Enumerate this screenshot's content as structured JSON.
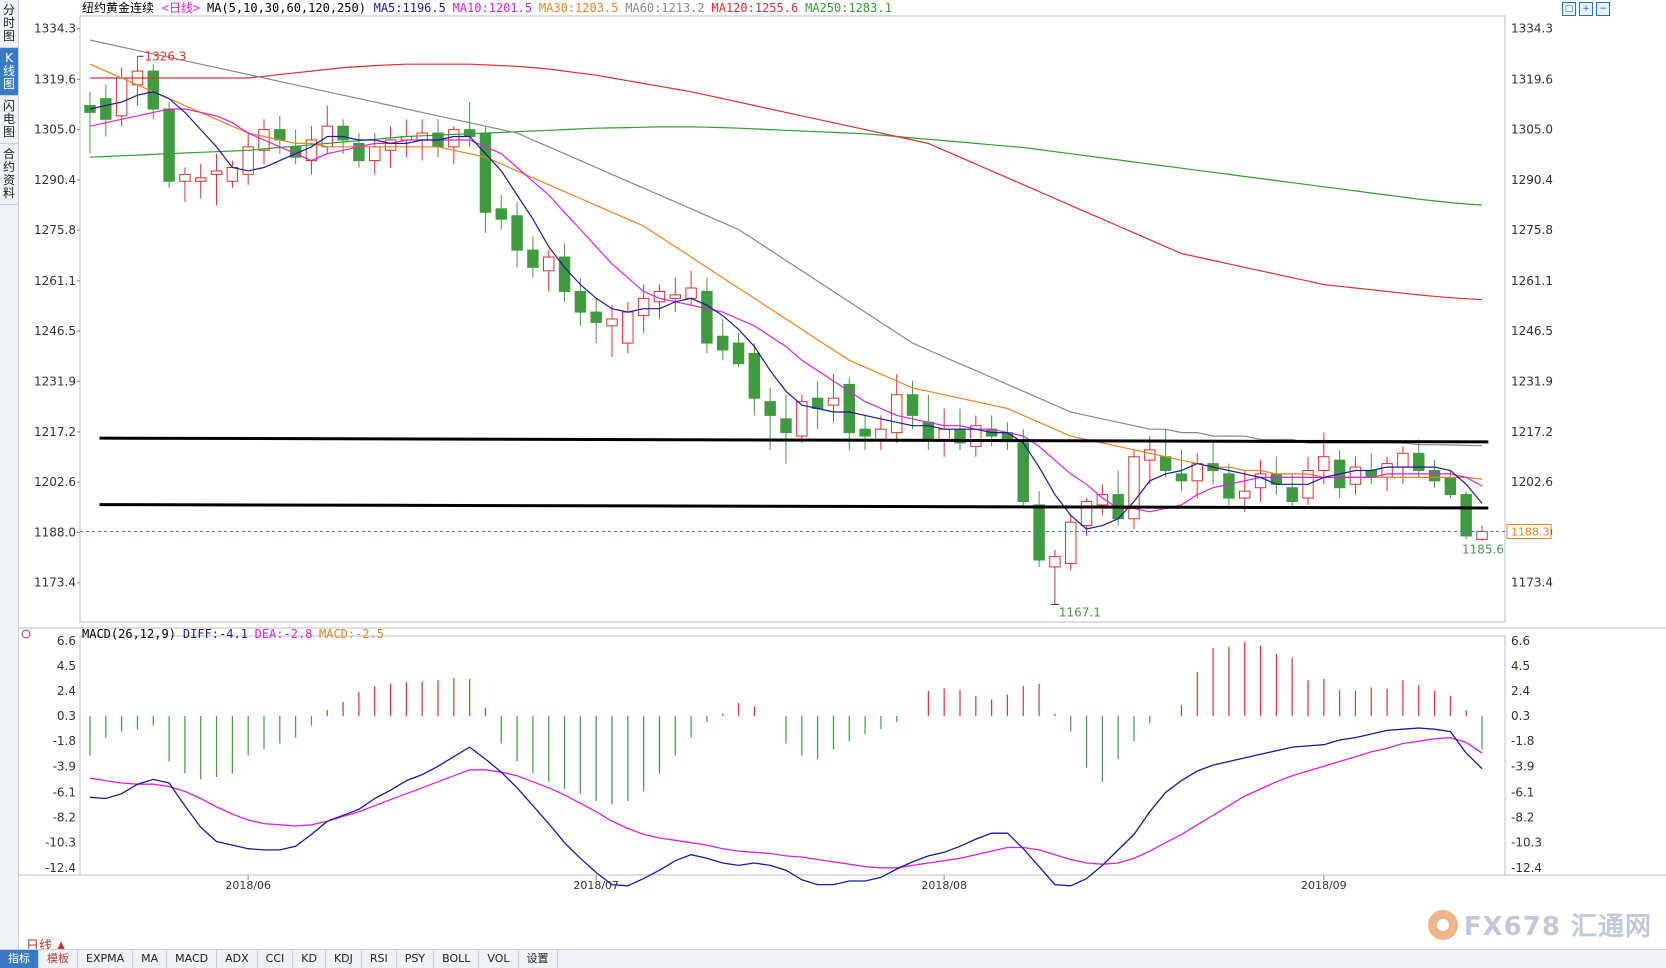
{
  "left_tabs": [
    {
      "label": "分时图",
      "active": false
    },
    {
      "label": "K线图",
      "active": true
    },
    {
      "label": "闪电图",
      "active": false
    },
    {
      "label": "合约资料",
      "active": false
    }
  ],
  "header": {
    "title": "纽约黄金连续",
    "period": "<日线>",
    "ma_params": "MA(5,10,30,60,120,250)",
    "ma_values": [
      {
        "text": "MA5:1196.5",
        "color": "#1a1a9c"
      },
      {
        "text": "MA10:1201.5",
        "color": "#e020e0"
      },
      {
        "text": "MA30:1203.5",
        "color": "#f08020"
      },
      {
        "text": "MA60:1213.2",
        "color": "#888888"
      },
      {
        "text": "MA120:1255.6",
        "color": "#e03030"
      },
      {
        "text": "MA250:1283.1",
        "color": "#30a030"
      }
    ]
  },
  "macd_header": {
    "params": "MACD(26,12,9)",
    "values": [
      {
        "text": "DIFF:-4.1",
        "color": "#1a1a9c"
      },
      {
        "text": "DEA:-2.8",
        "color": "#e020e0"
      },
      {
        "text": "MACD:-2.5",
        "color": "#f08020"
      }
    ]
  },
  "price_axis_labels": [
    "1334.3",
    "1319.6",
    "1305.0",
    "1290.4",
    "1275.8",
    "1261.1",
    "1246.5",
    "1231.9",
    "1217.2",
    "1202.6",
    "1188.0",
    "1173.4"
  ],
  "macd_axis_labels": [
    "6.6",
    "4.5",
    "2.4",
    "0.3",
    "-1.8",
    "-3.9",
    "-6.1",
    "-8.2",
    "-10.3",
    "-12.4"
  ],
  "month_labels": [
    {
      "text": "2018/06",
      "index": 10
    },
    {
      "text": "2018/07",
      "index": 32
    },
    {
      "text": "2018/08",
      "index": 54
    },
    {
      "text": "2018/09",
      "index": 78
    }
  ],
  "annotations": {
    "high": "1326.3",
    "low": "1167.1",
    "last_low": "1185.6",
    "current_price": "1188.3"
  },
  "period_label": "日线",
  "bottom_tabs": [
    "指标",
    "模板",
    "EXPMA",
    "MA",
    "MACD",
    "ADX",
    "CCI",
    "KD",
    "KDJ",
    "RSI",
    "PSY",
    "BOLL",
    "VOL",
    "设置"
  ],
  "watermark": "FX678 汇通网",
  "colors": {
    "up": "#e03030",
    "down": "#3f9b3f",
    "ma5": "#1a1a9c",
    "ma10": "#e020e0",
    "ma30": "#f08020",
    "ma60": "#888888",
    "ma120": "#e03030",
    "ma250": "#30a030",
    "diff": "#1a1a9c",
    "dea": "#e020e0"
  },
  "chart_data": {
    "type": "candlestick",
    "title": "纽约黄金连续",
    "price_range": [
      1162.0,
      1338.0
    ],
    "macd_range": [
      -13.0,
      7.0
    ],
    "candles": [
      [
        1312,
        1316,
        1298,
        1310
      ],
      [
        1314,
        1318,
        1303,
        1308
      ],
      [
        1309,
        1323,
        1306,
        1320
      ],
      [
        1318,
        1326.3,
        1312,
        1322
      ],
      [
        1322,
        1324,
        1308,
        1311
      ],
      [
        1311,
        1313,
        1288,
        1290
      ],
      [
        1290,
        1294,
        1284,
        1292
      ],
      [
        1290,
        1295,
        1285,
        1291
      ],
      [
        1292,
        1298,
        1283,
        1293
      ],
      [
        1290,
        1296,
        1288,
        1294
      ],
      [
        1292,
        1304,
        1289,
        1300
      ],
      [
        1299,
        1308,
        1295,
        1305
      ],
      [
        1305,
        1309,
        1298,
        1302
      ],
      [
        1300,
        1305,
        1295,
        1297
      ],
      [
        1296,
        1306,
        1292,
        1302
      ],
      [
        1300,
        1312,
        1298,
        1306
      ],
      [
        1306,
        1308,
        1298,
        1302
      ],
      [
        1301,
        1304,
        1294,
        1296
      ],
      [
        1296,
        1304,
        1292,
        1300
      ],
      [
        1299,
        1306,
        1294,
        1302
      ],
      [
        1302,
        1308,
        1297,
        1303
      ],
      [
        1302,
        1308,
        1296,
        1304
      ],
      [
        1304,
        1308,
        1297,
        1300
      ],
      [
        1300,
        1306,
        1295,
        1305
      ],
      [
        1305,
        1313,
        1300,
        1303
      ],
      [
        1304,
        1306,
        1275,
        1281
      ],
      [
        1282,
        1286,
        1276,
        1279
      ],
      [
        1280,
        1284,
        1265,
        1270
      ],
      [
        1270,
        1274,
        1262,
        1265
      ],
      [
        1264,
        1270,
        1258,
        1268
      ],
      [
        1268,
        1272,
        1255,
        1258
      ],
      [
        1258,
        1262,
        1248,
        1252
      ],
      [
        1252,
        1256,
        1243,
        1249
      ],
      [
        1248,
        1254,
        1239,
        1250
      ],
      [
        1243,
        1255,
        1240,
        1252
      ],
      [
        1251,
        1260,
        1246,
        1256
      ],
      [
        1255,
        1260,
        1250,
        1258
      ],
      [
        1256,
        1262,
        1252,
        1257
      ],
      [
        1256,
        1264,
        1254,
        1259
      ],
      [
        1258,
        1262,
        1240,
        1243
      ],
      [
        1245,
        1250,
        1238,
        1241
      ],
      [
        1243,
        1246,
        1236,
        1237
      ],
      [
        1240,
        1243,
        1222,
        1227
      ],
      [
        1226,
        1230,
        1212,
        1222
      ],
      [
        1221,
        1228,
        1208,
        1217
      ],
      [
        1216,
        1228,
        1214,
        1226
      ],
      [
        1227,
        1232,
        1218,
        1224
      ],
      [
        1225,
        1234,
        1220,
        1227
      ],
      [
        1231,
        1233,
        1212,
        1217
      ],
      [
        1218,
        1222,
        1212,
        1216
      ],
      [
        1215,
        1222,
        1212,
        1218
      ],
      [
        1217,
        1234,
        1214,
        1228
      ],
      [
        1228,
        1232,
        1218,
        1222
      ],
      [
        1220,
        1228,
        1212,
        1215
      ],
      [
        1215,
        1224,
        1210,
        1218
      ],
      [
        1218,
        1224,
        1212,
        1214
      ],
      [
        1213,
        1222,
        1210,
        1219
      ],
      [
        1218,
        1222,
        1213,
        1216
      ],
      [
        1217,
        1220,
        1212,
        1215
      ],
      [
        1214,
        1218,
        1196,
        1197
      ],
      [
        1196,
        1200,
        1178,
        1180
      ],
      [
        1178,
        1183,
        1167.1,
        1181
      ],
      [
        1179,
        1193,
        1177,
        1191
      ],
      [
        1190,
        1198,
        1187,
        1197
      ],
      [
        1196,
        1202,
        1193,
        1199
      ],
      [
        1199,
        1206,
        1190,
        1192
      ],
      [
        1192,
        1212,
        1189,
        1210
      ],
      [
        1209,
        1216,
        1202,
        1212
      ],
      [
        1210,
        1218,
        1204,
        1206
      ],
      [
        1205,
        1212,
        1200,
        1203
      ],
      [
        1203,
        1211,
        1198,
        1208
      ],
      [
        1208,
        1214,
        1202,
        1206
      ],
      [
        1205,
        1208,
        1196,
        1198
      ],
      [
        1198,
        1206,
        1194,
        1200
      ],
      [
        1201,
        1209,
        1197,
        1205
      ],
      [
        1205,
        1210,
        1199,
        1202
      ],
      [
        1201,
        1205,
        1195,
        1197
      ],
      [
        1198,
        1210,
        1196,
        1206
      ],
      [
        1206,
        1217,
        1202,
        1210
      ],
      [
        1209,
        1212,
        1198,
        1201
      ],
      [
        1202,
        1210,
        1199,
        1207
      ],
      [
        1206,
        1211,
        1202,
        1204
      ],
      [
        1204,
        1210,
        1200,
        1208
      ],
      [
        1207,
        1213,
        1202,
        1211
      ],
      [
        1211,
        1215,
        1204,
        1206
      ],
      [
        1206,
        1209,
        1201,
        1203
      ],
      [
        1204,
        1206,
        1198,
        1199
      ],
      [
        1199,
        1200,
        1186,
        1187
      ],
      [
        1186,
        1190,
        1185.6,
        1188.3
      ]
    ],
    "ma5": [
      1311,
      1312,
      1313,
      1315,
      1316,
      1314,
      1310,
      1305,
      1300,
      1294,
      1293,
      1294,
      1296,
      1298,
      1300,
      1303,
      1303,
      1302,
      1302,
      1301,
      1301,
      1302,
      1302,
      1303,
      1303,
      1298,
      1293,
      1286,
      1279,
      1271,
      1265,
      1260,
      1256,
      1253,
      1252,
      1253,
      1253,
      1255,
      1256,
      1254,
      1251,
      1247,
      1242,
      1235,
      1229,
      1225,
      1224,
      1223,
      1223,
      1222,
      1221,
      1220,
      1219,
      1219,
      1218,
      1218,
      1218,
      1217,
      1217,
      1214,
      1207,
      1199,
      1193,
      1189,
      1190,
      1192,
      1197,
      1203,
      1205,
      1206,
      1208,
      1207,
      1206,
      1205,
      1204,
      1202,
      1202,
      1202,
      1204,
      1205,
      1206,
      1206,
      1207,
      1207,
      1207,
      1207,
      1206,
      1202,
      1196.5
    ],
    "ma10": [
      1306,
      1307,
      1308,
      1309,
      1310,
      1311,
      1311,
      1310,
      1309,
      1307,
      1304,
      1302,
      1300,
      1298,
      1296,
      1298,
      1299,
      1300,
      1301,
      1301,
      1302,
      1302,
      1302,
      1302,
      1302,
      1300,
      1298,
      1294,
      1290,
      1286,
      1281,
      1276,
      1271,
      1266,
      1262,
      1258,
      1256,
      1255,
      1254,
      1253,
      1252,
      1250,
      1248,
      1245,
      1242,
      1238,
      1235,
      1232,
      1229,
      1226,
      1224,
      1222,
      1221,
      1220,
      1219,
      1219,
      1218,
      1218,
      1217,
      1216,
      1213,
      1209,
      1205,
      1202,
      1198,
      1195,
      1195,
      1194,
      1195,
      1196,
      1199,
      1201,
      1202,
      1203,
      1204,
      1204,
      1204,
      1204,
      1204,
      1204,
      1204,
      1204,
      1205,
      1205,
      1205,
      1205,
      1205,
      1204,
      1201.5
    ],
    "ma30": [
      1324,
      1322,
      1320,
      1318,
      1316,
      1314,
      1312,
      1310,
      1308,
      1306,
      1304,
      1303,
      1302,
      1301,
      1301,
      1300,
      1300,
      1300,
      1300,
      1300,
      1300,
      1300,
      1300,
      1299,
      1298,
      1297,
      1295,
      1293,
      1291,
      1289,
      1287,
      1285,
      1283,
      1281,
      1279,
      1277,
      1274,
      1271,
      1268,
      1265,
      1262,
      1259,
      1256,
      1253,
      1250,
      1247,
      1244,
      1241,
      1238,
      1236,
      1234,
      1232,
      1230,
      1229,
      1228,
      1227,
      1226,
      1225,
      1224,
      1222,
      1220,
      1218,
      1216,
      1215,
      1214,
      1213,
      1212,
      1211,
      1210,
      1209,
      1208,
      1207,
      1207,
      1206,
      1206,
      1205,
      1205,
      1205,
      1204,
      1204,
      1204,
      1204,
      1204,
      1204,
      1204,
      1204,
      1204,
      1204,
      1203.5
    ],
    "ma60": [
      1331,
      1330,
      1329,
      1328,
      1327,
      1326,
      1325,
      1324,
      1323,
      1322,
      1321,
      1320,
      1319,
      1318,
      1317,
      1316,
      1315,
      1314,
      1313,
      1312,
      1311,
      1310,
      1309,
      1308,
      1307,
      1306,
      1305,
      1304,
      1302,
      1300,
      1298,
      1296,
      1294,
      1292,
      1290,
      1288,
      1286,
      1284,
      1282,
      1280,
      1278,
      1276,
      1273,
      1270,
      1267,
      1264,
      1261,
      1258,
      1255,
      1252,
      1249,
      1246,
      1243,
      1241,
      1239,
      1237,
      1235,
      1233,
      1231,
      1229,
      1227,
      1225,
      1223,
      1222,
      1221,
      1220,
      1219,
      1218,
      1218,
      1217,
      1217,
      1216,
      1216,
      1216,
      1215,
      1215,
      1215,
      1214,
      1214,
      1214,
      1214,
      1214,
      1214,
      1214,
      1213.5,
      1213.5,
      1213.4,
      1213.3,
      1213.2
    ],
    "ma120": [
      1320,
      1320,
      1320,
      1320,
      1320,
      1320,
      1320,
      1320,
      1320,
      1320,
      1320,
      1320.5,
      1321,
      1321.5,
      1322,
      1322.5,
      1323,
      1323.3,
      1323.6,
      1323.8,
      1324,
      1324,
      1324,
      1324,
      1324,
      1323.8,
      1323.6,
      1323.4,
      1323,
      1322.6,
      1322,
      1321.4,
      1320.8,
      1320,
      1319.2,
      1318.4,
      1317.6,
      1316.8,
      1316,
      1315,
      1314,
      1313,
      1312,
      1311,
      1310,
      1309,
      1308,
      1307,
      1306,
      1305,
      1304,
      1303,
      1302,
      1301,
      1299,
      1297,
      1295,
      1293,
      1291,
      1289,
      1287,
      1285,
      1283,
      1281,
      1279,
      1277,
      1275,
      1273,
      1271,
      1269,
      1268,
      1267,
      1266,
      1265,
      1264,
      1263,
      1262,
      1261,
      1260,
      1259.5,
      1259,
      1258.5,
      1258,
      1257.5,
      1257,
      1256.6,
      1256.2,
      1255.9,
      1255.6
    ],
    "ma250": [
      1297,
      1297.2,
      1297.4,
      1297.6,
      1297.8,
      1298,
      1298.2,
      1298.4,
      1298.6,
      1298.8,
      1299,
      1299.4,
      1299.8,
      1300.2,
      1300.6,
      1301,
      1301.4,
      1301.8,
      1302.2,
      1302.6,
      1303,
      1303.2,
      1303.4,
      1303.6,
      1303.8,
      1304,
      1304.2,
      1304.4,
      1304.6,
      1304.8,
      1305,
      1305.2,
      1305.4,
      1305.5,
      1305.6,
      1305.7,
      1305.8,
      1305.8,
      1305.8,
      1305.7,
      1305.6,
      1305.4,
      1305.2,
      1305,
      1304.8,
      1304.6,
      1304.4,
      1304.2,
      1304,
      1303.8,
      1303.4,
      1303,
      1302.6,
      1302.2,
      1301.8,
      1301.4,
      1301,
      1300.6,
      1300.2,
      1299.8,
      1299.2,
      1298.6,
      1298,
      1297.4,
      1296.8,
      1296.2,
      1295.6,
      1295,
      1294.4,
      1293.8,
      1293.2,
      1292.6,
      1292,
      1291.4,
      1290.8,
      1290.2,
      1289.6,
      1289,
      1288.4,
      1287.8,
      1287.2,
      1286.6,
      1286,
      1285.4,
      1284.8,
      1284.3,
      1283.8,
      1283.4,
      1283.1
    ],
    "macd_hist": [
      -3,
      -1.5,
      -1,
      -0.8,
      -0.5,
      -3.5,
      -4.5,
      -5,
      -4.8,
      -4.5,
      -3,
      -2.5,
      -2,
      -1.5,
      -0.5,
      0.8,
      1.5,
      2.3,
      2.8,
      3,
      3.1,
      3.2,
      3.3,
      3.5,
      3.4,
      1,
      -2,
      -3.5,
      -4.5,
      -5.2,
      -5.8,
      -6.2,
      -6.8,
      -7.1,
      -6.8,
      -6,
      -4.5,
      -3,
      -1.5,
      -0.2,
      0.5,
      1.4,
      1.1,
      0.3,
      -2,
      -3,
      -3.3,
      -2.5,
      -1.8,
      -1.2,
      -0.8,
      -0.2,
      0.3,
      2.4,
      2.6,
      2.5,
      2,
      1.7,
      2.1,
      2.8,
      3,
      0.5,
      -1,
      -4,
      -5.2,
      -3.3,
      -1.8,
      -0.3,
      0.3,
      1.2,
      4,
      6.0,
      6.1,
      6.5,
      6.2,
      5.5,
      5.2,
      3.3,
      3.4,
      2.5,
      2.4,
      2.7,
      2.6,
      3.3,
      2.9,
      2.4,
      2.0,
      0.8,
      -2.5
    ],
    "diff": [
      -6.5,
      -6.6,
      -6.2,
      -5.4,
      -5.0,
      -5.3,
      -7.2,
      -9.0,
      -10.2,
      -10.5,
      -10.8,
      -10.9,
      -10.9,
      -10.6,
      -9.6,
      -8.5,
      -8.0,
      -7.5,
      -6.6,
      -5.9,
      -5.1,
      -4.6,
      -3.9,
      -3.1,
      -2.3,
      -3.3,
      -4.4,
      -5.7,
      -7.2,
      -8.7,
      -10.3,
      -11.6,
      -12.8,
      -13.8,
      -13.9,
      -13.3,
      -12.6,
      -11.8,
      -11.3,
      -11.6,
      -12.0,
      -12.2,
      -12.0,
      -12.2,
      -12.6,
      -13.4,
      -13.8,
      -13.8,
      -13.5,
      -13.5,
      -13.2,
      -12.5,
      -11.9,
      -11.4,
      -11.1,
      -10.6,
      -10.0,
      -9.5,
      -9.5,
      -10.8,
      -12.3,
      -13.8,
      -13.9,
      -13.3,
      -12.2,
      -10.9,
      -9.6,
      -7.7,
      -6.1,
      -5.1,
      -4.3,
      -3.8,
      -3.5,
      -3.2,
      -2.9,
      -2.6,
      -2.3,
      -2.2,
      -2.1,
      -1.7,
      -1.5,
      -1.2,
      -0.9,
      -0.8,
      -0.7,
      -0.8,
      -1.0,
      -2.8,
      -4.1
    ],
    "dea": [
      -4.9,
      -5.1,
      -5.3,
      -5.4,
      -5.4,
      -5.6,
      -6.0,
      -6.6,
      -7.3,
      -7.9,
      -8.4,
      -8.7,
      -8.8,
      -8.9,
      -8.8,
      -8.5,
      -8.1,
      -7.7,
      -7.2,
      -6.7,
      -6.2,
      -5.7,
      -5.2,
      -4.7,
      -4.2,
      -4.2,
      -4.4,
      -4.7,
      -5.2,
      -5.7,
      -6.3,
      -7.0,
      -7.7,
      -8.5,
      -9.1,
      -9.6,
      -9.9,
      -10.1,
      -10.3,
      -10.5,
      -10.8,
      -11.0,
      -11.1,
      -11.2,
      -11.4,
      -11.5,
      -11.7,
      -11.9,
      -12.1,
      -12.3,
      -12.4,
      -12.4,
      -12.2,
      -12.0,
      -11.8,
      -11.6,
      -11.3,
      -11.0,
      -10.7,
      -10.7,
      -10.9,
      -11.3,
      -11.7,
      -12.0,
      -12.1,
      -12.0,
      -11.6,
      -11.0,
      -10.3,
      -9.6,
      -8.8,
      -8.0,
      -7.2,
      -6.4,
      -5.8,
      -5.2,
      -4.7,
      -4.3,
      -3.9,
      -3.5,
      -3.1,
      -2.7,
      -2.4,
      -2.0,
      -1.8,
      -1.6,
      -1.5,
      -1.9,
      -2.8
    ],
    "trendlines": [
      {
        "from": [
          0.6,
          1215.4
        ],
        "to": [
          88.4,
          1214.3
        ]
      },
      {
        "from": [
          0.6,
          1196.1
        ],
        "to": [
          88.4,
          1195.1
        ]
      }
    ],
    "current_price": 1188.3
  }
}
